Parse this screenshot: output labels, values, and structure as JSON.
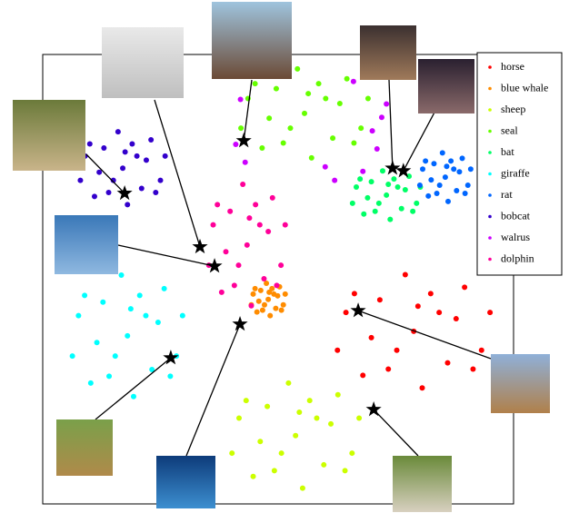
{
  "chart_data": {
    "type": "scatter",
    "xlim": [
      0,
      100
    ],
    "ylim": [
      0,
      100
    ],
    "legend": "upper right",
    "series": [
      {
        "name": "horse",
        "color": "#ff0000",
        "x": [
          78.8,
          87.8,
          69.8,
          82.4,
          73.4,
          93.2,
          64.4,
          89.6,
          68,
          80.6,
          77,
          95,
          62.6,
          86,
          71.6,
          84.2,
          75.2,
          91.4,
          66.2,
          79.7
        ],
        "y": [
          38.4,
          41.2,
          37,
          46.8,
          30,
          34.2,
          42.6,
          48.2,
          28.6,
          25.8,
          51,
          42.6,
          34.2,
          31.4,
          45.4,
          42.6,
          34.2,
          30,
          46.8,
          44
        ]
      },
      {
        "name": "blue whale",
        "color": "#ff8c00",
        "x": [
          47.9,
          49.9,
          45.9,
          48.7,
          46.7,
          51.1,
          44.7,
          50.3,
          45.5,
          48.3,
          47.5,
          51.5,
          44.3,
          49.5,
          46.3,
          49.1,
          47.1,
          50.7,
          45.1,
          48.1
        ],
        "y": [
          45.5,
          46.3,
          45.1,
          47.9,
          43.1,
          44.3,
          46.7,
          48.3,
          42.7,
          41.9,
          49.1,
          46.7,
          44.3,
          43.5,
          47.5,
          46.7,
          44.3,
          43.1,
          47.9,
          47.1
        ]
      },
      {
        "name": "sheep",
        "color": "#ccff00",
        "x": [
          53.7,
          61.2,
          46.2,
          56.7,
          49.2,
          65.7,
          41.7,
          62.7,
          44.7,
          55.2,
          52.2,
          67.2,
          40.2,
          59.7,
          47.7,
          58.2,
          50.7,
          64.2,
          43.2,
          54.5
        ],
        "y": [
          15.2,
          17.8,
          13.9,
          23,
          7.4,
          11.3,
          19.1,
          24.3,
          6.1,
          3.5,
          26.9,
          19.1,
          11.3,
          8.7,
          21.7,
          19.1,
          11.3,
          7.4,
          23,
          20.4
        ]
      },
      {
        "name": "seal",
        "color": "#66ff00",
        "x": [
          55.6,
          63.1,
          48.1,
          58.6,
          51.1,
          67.6,
          43.6,
          64.6,
          46.6,
          57.1,
          54.1,
          69.1,
          42.1,
          61.6,
          49.6,
          60.1,
          52.6,
          66.1,
          45.1,
          56.4
        ],
        "y": [
          86.9,
          89.1,
          85.8,
          93.5,
          80.3,
          83.6,
          90.2,
          94.6,
          79.2,
          77,
          96.8,
          90.2,
          83.6,
          81.4,
          92.4,
          90.2,
          83.6,
          80.3,
          93.5,
          91.3
        ]
      },
      {
        "name": "bat",
        "color": "#00ff66",
        "x": [
          73,
          77,
          69,
          74.6,
          70.6,
          79.4,
          66.6,
          77.8,
          68.2,
          73.8,
          72.2,
          80.2,
          65.8,
          76.2,
          69.8,
          75.4,
          71.4,
          78.6,
          67.4,
          73.4
        ],
        "y": [
          68.7,
          69.9,
          68.1,
          72.3,
          65.1,
          66.9,
          70.5,
          72.9,
          64.5,
          63.3,
          74.1,
          70.5,
          66.9,
          65.7,
          71.7,
          70.5,
          66.9,
          65.1,
          72.3,
          71.1
        ]
      },
      {
        "name": "giraffe",
        "color": "#00ffff",
        "x": [
          18,
          24.5,
          11.5,
          20.6,
          14.1,
          28.4,
          7.6,
          25.8,
          10.2,
          19.3,
          16.7,
          29.7,
          6.3,
          23.2,
          12.8,
          21.9,
          15.4,
          27.1,
          8.9,
          18.7
        ],
        "y": [
          37.4,
          40.4,
          35.9,
          46.4,
          28.4,
          32.9,
          41.9,
          47.9,
          26.9,
          23.9,
          50.9,
          41.9,
          32.9,
          29.9,
          44.9,
          41.9,
          32.9,
          28.4,
          46.4,
          43.4
        ]
      },
      {
        "name": "rat",
        "color": "#0066ff",
        "x": [
          85.5,
          88.5,
          82.5,
          86.7,
          83.7,
          90.3,
          80.7,
          89.1,
          81.9,
          86.1,
          84.9,
          90.9,
          80.1,
          87.9,
          83.1,
          87.3,
          84.3,
          89.7,
          81.3,
          85.8
        ],
        "y": [
          72.7,
          73.9,
          72.1,
          76.3,
          69.1,
          70.9,
          74.5,
          76.9,
          68.5,
          67.3,
          78.1,
          74.5,
          70.9,
          69.7,
          75.7,
          74.5,
          70.9,
          69.1,
          76.3,
          75.1
        ]
      },
      {
        "name": "bobcat",
        "color": "#3300cc",
        "x": [
          17,
          22,
          12,
          19,
          14,
          25,
          9,
          23,
          11,
          18,
          16,
          26,
          8,
          21,
          13,
          20,
          15,
          24,
          10,
          17.5
        ],
        "y": [
          74.7,
          76.5,
          73.8,
          80.1,
          69.3,
          72,
          77.4,
          81,
          68.4,
          66.6,
          82.8,
          77.4,
          72,
          70.2,
          79.2,
          77.4,
          72,
          69.3,
          80.1,
          78.3
        ]
      },
      {
        "name": "walrus",
        "color": "#cc00ff",
        "x": [
          41,
          43,
          70,
          71,
          68,
          73,
          45,
          60,
          66,
          42,
          72,
          62
        ],
        "y": [
          80,
          76,
          83,
          79,
          74,
          89,
          96,
          75,
          94,
          90,
          86,
          72
        ]
      },
      {
        "name": "dolphin",
        "color": "#ff0099",
        "x": [
          43.4,
          47.9,
          38.9,
          45.2,
          40.7,
          50.6,
          36.2,
          48.8,
          38,
          44.3,
          42.5,
          51.5,
          35.3,
          47,
          39.8,
          46.1,
          41.6,
          49.7,
          37.1,
          43.9
        ],
        "y": [
          57.6,
          60.6,
          56.1,
          66.6,
          48.6,
          53.1,
          62.1,
          68.1,
          47.1,
          44.1,
          71.1,
          62.1,
          53.1,
          50.1,
          65.1,
          62.1,
          53.1,
          48.6,
          66.6,
          63.6
        ]
      }
    ],
    "stars": {
      "x": [
        17.4,
        42.7,
        33.4,
        36.5,
        41.9,
        27.2,
        74.3,
        76.6,
        67,
        70.3
      ],
      "y": [
        69.1,
        80.8,
        57.2,
        52.9,
        40,
        32.5,
        74.7,
        74.1,
        43,
        21
      ]
    }
  }
}
